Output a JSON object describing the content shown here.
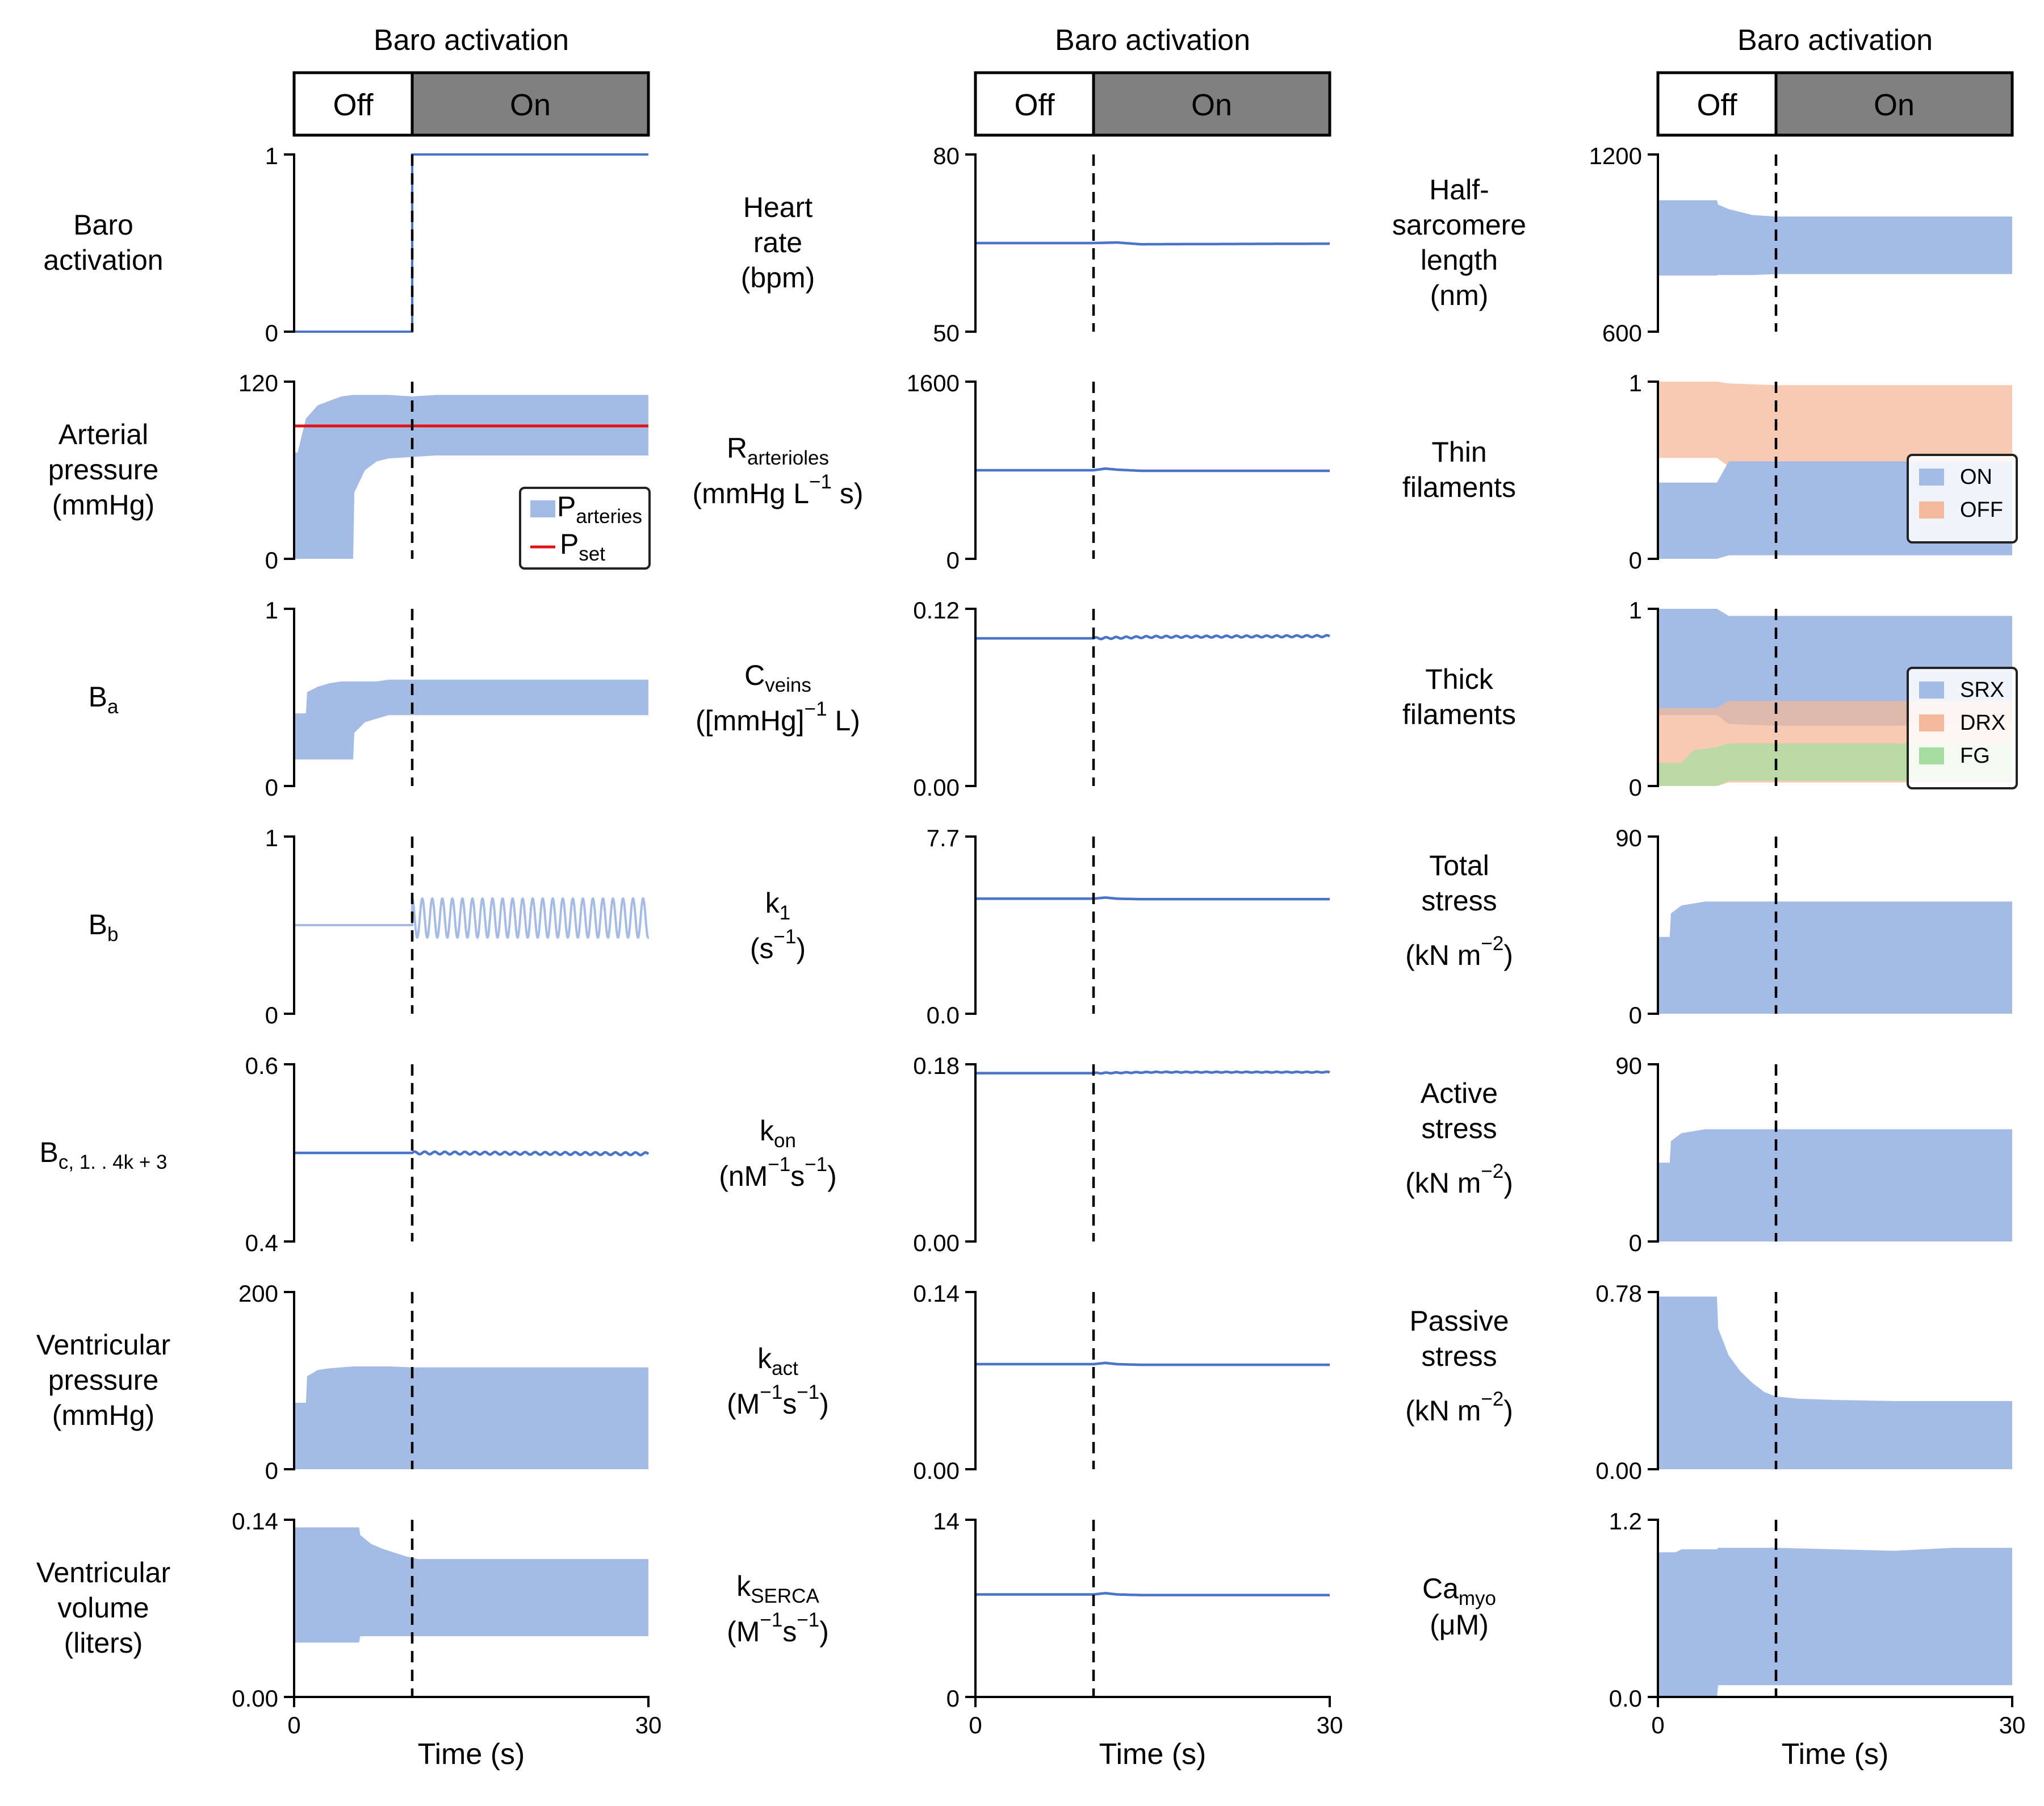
{
  "header": {
    "title": "Baro activation",
    "off_label": "Off",
    "on_label": "On"
  },
  "colors": {
    "band": "#a3bbe5",
    "line": "#4a74c9",
    "line_light": "#a3bbe5",
    "pset": "#e01414",
    "off_fill": "#f4b89a",
    "srx": "#a3bbe5",
    "drx": "#f4b89a",
    "fg": "#a5dea0",
    "on_box": "#808080"
  },
  "chart_data": [
    {
      "id": "c1r1",
      "type": "line",
      "xlim": [
        0,
        30
      ],
      "ylim": [
        0,
        1
      ],
      "yticks": [
        "0",
        "1"
      ],
      "xlabel": "",
      "row_label": [
        "Baro",
        "activation"
      ],
      "series": [
        {
          "kind": "step",
          "x": [
            0,
            10,
            10,
            30
          ],
          "values": [
            0,
            0,
            1,
            1
          ]
        }
      ]
    },
    {
      "id": "c1r2",
      "type": "area",
      "xlim": [
        0,
        30
      ],
      "ylim": [
        0,
        120
      ],
      "yticks": [
        "0",
        "120"
      ],
      "row_label": [
        "Arterial",
        "pressure",
        "(mmHg)"
      ],
      "series": [
        {
          "name": "P",
          "kind": "band",
          "x": [
            0,
            0.3,
            1,
            2,
            3,
            4,
            5,
            5.1,
            6,
            7,
            8,
            10,
            12,
            15,
            20,
            30
          ],
          "upper": [
            72,
            72,
            95,
            104,
            107,
            110,
            111,
            111,
            111,
            111,
            111,
            110,
            111,
            111,
            111,
            111
          ],
          "lower": [
            0,
            0,
            0,
            0,
            0,
            0,
            0,
            45,
            60,
            66,
            68,
            69,
            70,
            70,
            70,
            70
          ]
        },
        {
          "name": "P",
          "kind": "hline",
          "x": [
            0,
            30
          ],
          "values": [
            90,
            90
          ]
        }
      ],
      "legend": {
        "position": "lower-right",
        "entries": [
          [
            "P",
            "arteries"
          ],
          [
            "P",
            "set"
          ]
        ]
      }
    },
    {
      "id": "c1r3",
      "type": "area",
      "xlim": [
        0,
        30
      ],
      "ylim": [
        0,
        1
      ],
      "yticks": [
        "0",
        "1"
      ],
      "row_label": [
        "B",
        "a"
      ],
      "series": [
        {
          "kind": "band",
          "x": [
            0,
            1,
            1.1,
            2,
            3,
            4,
            5,
            5.1,
            6,
            7,
            8,
            10,
            30
          ],
          "upper": [
            0.41,
            0.41,
            0.53,
            0.56,
            0.58,
            0.59,
            0.59,
            0.59,
            0.59,
            0.59,
            0.6,
            0.6,
            0.6
          ],
          "lower": [
            0.15,
            0.15,
            0.15,
            0.15,
            0.15,
            0.15,
            0.15,
            0.3,
            0.36,
            0.38,
            0.4,
            0.4,
            0.4
          ]
        }
      ]
    },
    {
      "id": "c1r4",
      "type": "line",
      "xlim": [
        0,
        30
      ],
      "ylim": [
        0,
        1
      ],
      "yticks": [
        "0",
        "1"
      ],
      "row_label": [
        "B",
        "b"
      ],
      "series": [
        {
          "kind": "oscillation",
          "baseline": 0.5,
          "baseline_end": 10,
          "center": 0.54,
          "amplitude": 0.11,
          "start_peak": 0.66,
          "period": 0.85,
          "x_end": 30
        }
      ]
    },
    {
      "id": "c1r5",
      "type": "line",
      "xlim": [
        0,
        30
      ],
      "ylim": [
        0.4,
        0.6
      ],
      "yticks": [
        "0.4",
        "0.6"
      ],
      "row_label": [
        "B",
        "c, 1. . 4k + 3"
      ],
      "series": [
        {
          "kind": "flat",
          "x": [
            0,
            10,
            30
          ],
          "values": [
            0.5,
            0.5,
            0.499
          ],
          "wobble": 0.0015
        }
      ]
    },
    {
      "id": "c1r6",
      "type": "area",
      "xlim": [
        0,
        30
      ],
      "ylim": [
        0,
        200
      ],
      "yticks": [
        "0",
        "200"
      ],
      "row_label": [
        "Ventricular",
        "pressure",
        "(mmHg)"
      ],
      "series": [
        {
          "kind": "band",
          "x": [
            0,
            1,
            1.1,
            2,
            3,
            4,
            5,
            6,
            8,
            10,
            30
          ],
          "upper": [
            75,
            75,
            105,
            112,
            114,
            115,
            116,
            116,
            116,
            115,
            115
          ],
          "lower": [
            0,
            0,
            0,
            0,
            0,
            0,
            0,
            0,
            0,
            0,
            0
          ]
        }
      ]
    },
    {
      "id": "c1r7",
      "type": "area",
      "xlim": [
        0,
        30
      ],
      "ylim": [
        0,
        0.14
      ],
      "yticks": [
        "0.00",
        "0.14"
      ],
      "xlabel": "Time (s)",
      "xticks": [
        "0",
        "30"
      ],
      "row_label": [
        "Ventricular",
        "volume",
        "(liters)"
      ],
      "series": [
        {
          "kind": "band",
          "x": [
            0,
            5.5,
            5.6,
            6.5,
            7.5,
            8.5,
            9.5,
            10.5,
            12,
            30
          ],
          "upper": [
            0.134,
            0.134,
            0.128,
            0.121,
            0.117,
            0.114,
            0.111,
            0.109,
            0.109,
            0.109
          ],
          "lower": [
            0.043,
            0.043,
            0.048,
            0.048,
            0.048,
            0.048,
            0.048,
            0.048,
            0.048,
            0.048
          ]
        }
      ]
    },
    {
      "id": "c2r1",
      "type": "line",
      "xlim": [
        0,
        30
      ],
      "ylim": [
        50,
        80
      ],
      "yticks": [
        "50",
        "80"
      ],
      "row_label": [
        "Heart",
        "rate",
        "(bpm)"
      ],
      "series": [
        {
          "kind": "flat",
          "x": [
            0,
            10,
            12,
            14,
            30
          ],
          "values": [
            65,
            65,
            65.1,
            64.8,
            64.9
          ]
        }
      ]
    },
    {
      "id": "c2r2",
      "type": "line",
      "xlim": [
        0,
        30
      ],
      "ylim": [
        0,
        1600
      ],
      "yticks": [
        "0",
        "1600"
      ],
      "row_label": [
        "R",
        "arterioles",
        "(mmHg L",
        "−1",
        " s)"
      ],
      "series": [
        {
          "kind": "flat",
          "x": [
            0,
            10,
            11,
            12,
            14,
            30
          ],
          "values": [
            800,
            800,
            815,
            805,
            795,
            795
          ]
        }
      ]
    },
    {
      "id": "c2r3",
      "type": "line",
      "xlim": [
        0,
        30
      ],
      "ylim": [
        0,
        0.12
      ],
      "yticks": [
        "0.00",
        "0.12"
      ],
      "row_label": [
        "C",
        "veins",
        "([mmHg]",
        "−1",
        " L)"
      ],
      "series": [
        {
          "kind": "flat",
          "x": [
            0,
            10,
            15,
            30
          ],
          "values": [
            0.1,
            0.1,
            0.101,
            0.1015
          ],
          "wobble": 0.0006
        }
      ]
    },
    {
      "id": "c2r4",
      "type": "line",
      "xlim": [
        0,
        30
      ],
      "ylim": [
        0,
        7.7
      ],
      "yticks": [
        "0.0",
        "7.7"
      ],
      "row_label": [
        "k",
        "1",
        "(s",
        "−1",
        ")"
      ],
      "series": [
        {
          "kind": "flat",
          "x": [
            0,
            10,
            11,
            12,
            14,
            30
          ],
          "values": [
            5.0,
            5.0,
            5.05,
            5.0,
            4.98,
            4.98
          ]
        }
      ]
    },
    {
      "id": "c2r5",
      "type": "line",
      "xlim": [
        0,
        30
      ],
      "ylim": [
        0,
        0.18
      ],
      "yticks": [
        "0.00",
        "0.18"
      ],
      "row_label": [
        "k",
        "on",
        "(nM",
        "−1",
        "s",
        "−1",
        ")"
      ],
      "series": [
        {
          "kind": "flat",
          "x": [
            0,
            10,
            15,
            30
          ],
          "values": [
            0.171,
            0.171,
            0.172,
            0.172
          ],
          "wobble": 0.0004
        }
      ]
    },
    {
      "id": "c2r6",
      "type": "line",
      "xlim": [
        0,
        30
      ],
      "ylim": [
        0,
        0.14
      ],
      "yticks": [
        "0.00",
        "0.14"
      ],
      "row_label": [
        "k",
        "act",
        "(M",
        "−1",
        "s",
        "−1",
        ")"
      ],
      "series": [
        {
          "kind": "flat",
          "x": [
            0,
            10,
            11,
            12,
            14,
            30
          ],
          "values": [
            0.083,
            0.083,
            0.084,
            0.083,
            0.0825,
            0.0825
          ]
        }
      ]
    },
    {
      "id": "c2r7",
      "type": "line",
      "xlim": [
        0,
        30
      ],
      "ylim": [
        0,
        14
      ],
      "yticks": [
        "0",
        "14"
      ],
      "xlabel": "Time (s)",
      "xticks": [
        "0",
        "30"
      ],
      "row_label": [
        "k",
        "SERCA",
        "(M",
        "−1",
        "s",
        "−1",
        ")"
      ],
      "series": [
        {
          "kind": "flat",
          "x": [
            0,
            10,
            11,
            12,
            14,
            30
          ],
          "values": [
            8.1,
            8.1,
            8.2,
            8.1,
            8.05,
            8.05
          ]
        }
      ]
    },
    {
      "id": "c3r1",
      "type": "area",
      "xlim": [
        0,
        30
      ],
      "ylim": [
        600,
        1200
      ],
      "yticks": [
        "600",
        "1200"
      ],
      "row_label": [
        "Half-",
        "sarcomere",
        "length",
        "(nm)"
      ],
      "series": [
        {
          "kind": "band",
          "x": [
            0,
            5,
            5.1,
            6,
            7,
            8,
            10,
            30
          ],
          "upper": [
            1045,
            1045,
            1030,
            1015,
            1005,
            995,
            990,
            990
          ],
          "lower": [
            790,
            790,
            792,
            792,
            792,
            792,
            795,
            795
          ]
        }
      ]
    },
    {
      "id": "c3r2",
      "type": "area",
      "xlim": [
        0,
        30
      ],
      "ylim": [
        0,
        1
      ],
      "yticks": [
        "0",
        "1"
      ],
      "row_label": [
        "Thin",
        "filaments"
      ],
      "series": [
        {
          "name": "OFF",
          "kind": "band",
          "x": [
            0,
            5,
            6,
            10,
            30
          ],
          "upper": [
            1.0,
            1.0,
            0.99,
            0.98,
            0.98
          ],
          "lower": [
            0.57,
            0.57,
            0.52,
            0.52,
            0.52
          ]
        },
        {
          "name": "ON",
          "kind": "band",
          "x": [
            0,
            5,
            6,
            10,
            30
          ],
          "upper": [
            0.43,
            0.43,
            0.55,
            0.55,
            0.55
          ],
          "lower": [
            0.0,
            0.0,
            0.02,
            0.02,
            0.02
          ]
        }
      ],
      "legend": {
        "position": "right",
        "entries": [
          "ON",
          "OFF"
        ]
      }
    },
    {
      "id": "c3r3",
      "type": "area",
      "xlim": [
        0,
        30
      ],
      "ylim": [
        0,
        1
      ],
      "yticks": [
        "0",
        "1"
      ],
      "row_label": [
        "Thick",
        "filaments"
      ],
      "series": [
        {
          "name": "SRX",
          "kind": "band",
          "x": [
            0,
            5,
            6,
            10,
            30
          ],
          "upper": [
            1.0,
            1.0,
            0.96,
            0.96,
            0.96
          ],
          "lower": [
            0.4,
            0.4,
            0.35,
            0.34,
            0.34
          ]
        },
        {
          "name": "DRX",
          "kind": "band",
          "x": [
            0,
            5,
            6,
            10,
            30
          ],
          "upper": [
            0.44,
            0.44,
            0.48,
            0.48,
            0.48
          ],
          "lower": [
            0.0,
            0.0,
            0.02,
            0.02,
            0.02
          ]
        },
        {
          "name": "FG",
          "kind": "band",
          "x": [
            0,
            2,
            3,
            5,
            6,
            10,
            30
          ],
          "upper": [
            0.13,
            0.13,
            0.2,
            0.22,
            0.24,
            0.24,
            0.24
          ],
          "lower": [
            0.0,
            0.0,
            0.0,
            0.0,
            0.03,
            0.03,
            0.03
          ]
        }
      ],
      "legend": {
        "position": "lower-right",
        "entries": [
          "SRX",
          "DRX",
          "FG"
        ]
      }
    },
    {
      "id": "c3r4",
      "type": "area",
      "xlim": [
        0,
        30
      ],
      "ylim": [
        0,
        90
      ],
      "yticks": [
        "0",
        "90"
      ],
      "row_label": [
        "Total",
        "stress",
        "(kN m",
        "−2",
        ")"
      ],
      "series": [
        {
          "kind": "band",
          "x": [
            0,
            1,
            1.1,
            2,
            3,
            4,
            6,
            10,
            30
          ],
          "upper": [
            39,
            39,
            51,
            55,
            56,
            57,
            57,
            57,
            57
          ],
          "lower": [
            0,
            0,
            0,
            0,
            0,
            0,
            0,
            0,
            0
          ]
        }
      ]
    },
    {
      "id": "c3r5",
      "type": "area",
      "xlim": [
        0,
        30
      ],
      "ylim": [
        0,
        90
      ],
      "yticks": [
        "0",
        "90"
      ],
      "row_label": [
        "Active",
        "stress",
        "(kN m",
        "−2",
        ")"
      ],
      "series": [
        {
          "kind": "band",
          "x": [
            0,
            1,
            1.1,
            2,
            3,
            4,
            6,
            10,
            30
          ],
          "upper": [
            40,
            40,
            51,
            55,
            56,
            57,
            57,
            57,
            57
          ],
          "lower": [
            0,
            0,
            0,
            0,
            0,
            0,
            0,
            0,
            0
          ]
        }
      ]
    },
    {
      "id": "c3r6",
      "type": "area",
      "xlim": [
        0,
        30
      ],
      "ylim": [
        0,
        0.78
      ],
      "yticks": [
        "0.00",
        "0.78"
      ],
      "row_label": [
        "Passive",
        "stress",
        "(kN m",
        "−2",
        ")"
      ],
      "series": [
        {
          "kind": "band",
          "x": [
            0,
            5,
            5.1,
            6,
            7,
            8,
            9,
            10,
            12,
            15,
            20,
            30
          ],
          "upper": [
            0.76,
            0.76,
            0.62,
            0.5,
            0.43,
            0.38,
            0.34,
            0.32,
            0.31,
            0.305,
            0.3,
            0.3
          ],
          "lower": [
            0,
            0,
            0,
            0,
            0,
            0,
            0,
            0,
            0,
            0,
            0,
            0
          ]
        }
      ]
    },
    {
      "id": "c3r7",
      "type": "area",
      "xlim": [
        0,
        30
      ],
      "ylim": [
        0,
        1.2
      ],
      "yticks": [
        "0.0",
        "1.2"
      ],
      "xlabel": "Time (s)",
      "xticks": [
        "0",
        "30"
      ],
      "row_label": [
        "Ca",
        "myo",
        "(μM)"
      ],
      "series": [
        {
          "kind": "band",
          "x": [
            0,
            1.5,
            2,
            5,
            5.1,
            10,
            20,
            25,
            30
          ],
          "upper": [
            0.98,
            0.98,
            1.0,
            1.0,
            1.01,
            1.01,
            0.99,
            1.01,
            1.01
          ],
          "lower": [
            0.0,
            0.0,
            0.0,
            0.0,
            0.08,
            0.08,
            0.08,
            0.08,
            0.08
          ]
        }
      ]
    }
  ]
}
